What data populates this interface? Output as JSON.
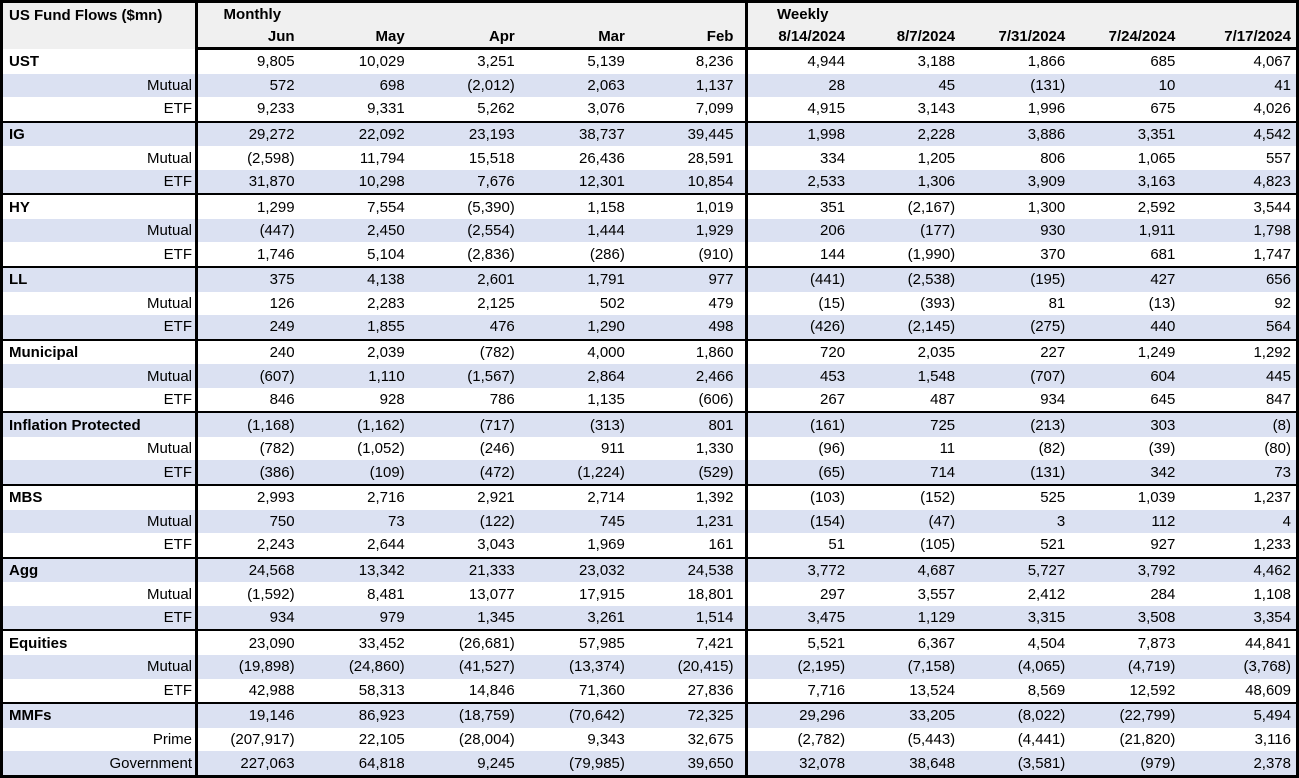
{
  "title": "US Fund Flows ($mn)",
  "groups": {
    "monthly": "Monthly",
    "weekly": "Weekly"
  },
  "columns": {
    "monthly": [
      "Jun",
      "May",
      "Apr",
      "Mar",
      "Feb"
    ],
    "weekly": [
      "8/14/2024",
      "8/7/2024",
      "7/31/2024",
      "7/24/2024",
      "7/17/2024"
    ]
  },
  "colors": {
    "stripe": "#dbe1f2",
    "header_bg": "#f0f0f0",
    "border": "#000000"
  },
  "sections": [
    {
      "name": "UST",
      "rows": [
        {
          "label": "UST",
          "values": [
            "9,805",
            "10,029",
            "3,251",
            "5,139",
            "8,236",
            "4,944",
            "3,188",
            "1,866",
            "685",
            "4,067"
          ]
        },
        {
          "label": "Mutual",
          "values": [
            "572",
            "698",
            "(2,012)",
            "2,063",
            "1,137",
            "28",
            "45",
            "(131)",
            "10",
            "41"
          ]
        },
        {
          "label": "ETF",
          "values": [
            "9,233",
            "9,331",
            "5,262",
            "3,076",
            "7,099",
            "4,915",
            "3,143",
            "1,996",
            "675",
            "4,026"
          ]
        }
      ]
    },
    {
      "name": "IG",
      "rows": [
        {
          "label": "IG",
          "values": [
            "29,272",
            "22,092",
            "23,193",
            "38,737",
            "39,445",
            "1,998",
            "2,228",
            "3,886",
            "3,351",
            "4,542"
          ]
        },
        {
          "label": "Mutual",
          "values": [
            "(2,598)",
            "11,794",
            "15,518",
            "26,436",
            "28,591",
            "334",
            "1,205",
            "806",
            "1,065",
            "557"
          ]
        },
        {
          "label": "ETF",
          "values": [
            "31,870",
            "10,298",
            "7,676",
            "12,301",
            "10,854",
            "2,533",
            "1,306",
            "3,909",
            "3,163",
            "4,823"
          ]
        }
      ]
    },
    {
      "name": "HY",
      "rows": [
        {
          "label": "HY",
          "values": [
            "1,299",
            "7,554",
            "(5,390)",
            "1,158",
            "1,019",
            "351",
            "(2,167)",
            "1,300",
            "2,592",
            "3,544"
          ]
        },
        {
          "label": "Mutual",
          "values": [
            "(447)",
            "2,450",
            "(2,554)",
            "1,444",
            "1,929",
            "206",
            "(177)",
            "930",
            "1,911",
            "1,798"
          ]
        },
        {
          "label": "ETF",
          "values": [
            "1,746",
            "5,104",
            "(2,836)",
            "(286)",
            "(910)",
            "144",
            "(1,990)",
            "370",
            "681",
            "1,747"
          ]
        }
      ]
    },
    {
      "name": "LL",
      "rows": [
        {
          "label": "LL",
          "values": [
            "375",
            "4,138",
            "2,601",
            "1,791",
            "977",
            "(441)",
            "(2,538)",
            "(195)",
            "427",
            "656"
          ]
        },
        {
          "label": "Mutual",
          "values": [
            "126",
            "2,283",
            "2,125",
            "502",
            "479",
            "(15)",
            "(393)",
            "81",
            "(13)",
            "92"
          ]
        },
        {
          "label": "ETF",
          "values": [
            "249",
            "1,855",
            "476",
            "1,290",
            "498",
            "(426)",
            "(2,145)",
            "(275)",
            "440",
            "564"
          ]
        }
      ]
    },
    {
      "name": "Municipal",
      "rows": [
        {
          "label": "Municipal",
          "values": [
            "240",
            "2,039",
            "(782)",
            "4,000",
            "1,860",
            "720",
            "2,035",
            "227",
            "1,249",
            "1,292"
          ]
        },
        {
          "label": "Mutual",
          "values": [
            "(607)",
            "1,110",
            "(1,567)",
            "2,864",
            "2,466",
            "453",
            "1,548",
            "(707)",
            "604",
            "445"
          ]
        },
        {
          "label": "ETF",
          "values": [
            "846",
            "928",
            "786",
            "1,135",
            "(606)",
            "267",
            "487",
            "934",
            "645",
            "847"
          ]
        }
      ]
    },
    {
      "name": "Inflation Protected",
      "rows": [
        {
          "label": "Inflation Protected",
          "values": [
            "(1,168)",
            "(1,162)",
            "(717)",
            "(313)",
            "801",
            "(161)",
            "725",
            "(213)",
            "303",
            "(8)"
          ]
        },
        {
          "label": "Mutual",
          "values": [
            "(782)",
            "(1,052)",
            "(246)",
            "911",
            "1,330",
            "(96)",
            "11",
            "(82)",
            "(39)",
            "(80)"
          ]
        },
        {
          "label": "ETF",
          "values": [
            "(386)",
            "(109)",
            "(472)",
            "(1,224)",
            "(529)",
            "(65)",
            "714",
            "(131)",
            "342",
            "73"
          ]
        }
      ]
    },
    {
      "name": "MBS",
      "rows": [
        {
          "label": "MBS",
          "values": [
            "2,993",
            "2,716",
            "2,921",
            "2,714",
            "1,392",
            "(103)",
            "(152)",
            "525",
            "1,039",
            "1,237"
          ]
        },
        {
          "label": "Mutual",
          "values": [
            "750",
            "73",
            "(122)",
            "745",
            "1,231",
            "(154)",
            "(47)",
            "3",
            "112",
            "4"
          ]
        },
        {
          "label": "ETF",
          "values": [
            "2,243",
            "2,644",
            "3,043",
            "1,969",
            "161",
            "51",
            "(105)",
            "521",
            "927",
            "1,233"
          ]
        }
      ]
    },
    {
      "name": "Agg",
      "rows": [
        {
          "label": "Agg",
          "values": [
            "24,568",
            "13,342",
            "21,333",
            "23,032",
            "24,538",
            "3,772",
            "4,687",
            "5,727",
            "3,792",
            "4,462"
          ]
        },
        {
          "label": "Mutual",
          "values": [
            "(1,592)",
            "8,481",
            "13,077",
            "17,915",
            "18,801",
            "297",
            "3,557",
            "2,412",
            "284",
            "1,108"
          ]
        },
        {
          "label": "ETF",
          "values": [
            "934",
            "979",
            "1,345",
            "3,261",
            "1,514",
            "3,475",
            "1,129",
            "3,315",
            "3,508",
            "3,354"
          ]
        }
      ]
    },
    {
      "name": "Equities",
      "rows": [
        {
          "label": "Equities",
          "values": [
            "23,090",
            "33,452",
            "(26,681)",
            "57,985",
            "7,421",
            "5,521",
            "6,367",
            "4,504",
            "7,873",
            "44,841"
          ]
        },
        {
          "label": "Mutual",
          "values": [
            "(19,898)",
            "(24,860)",
            "(41,527)",
            "(13,374)",
            "(20,415)",
            "(2,195)",
            "(7,158)",
            "(4,065)",
            "(4,719)",
            "(3,768)"
          ]
        },
        {
          "label": "ETF",
          "values": [
            "42,988",
            "58,313",
            "14,846",
            "71,360",
            "27,836",
            "7,716",
            "13,524",
            "8,569",
            "12,592",
            "48,609"
          ]
        }
      ]
    },
    {
      "name": "MMFs",
      "rows": [
        {
          "label": "MMFs",
          "values": [
            "19,146",
            "86,923",
            "(18,759)",
            "(70,642)",
            "72,325",
            "29,296",
            "33,205",
            "(8,022)",
            "(22,799)",
            "5,494"
          ]
        },
        {
          "label": "Prime",
          "values": [
            "(207,917)",
            "22,105",
            "(28,004)",
            "9,343",
            "32,675",
            "(2,782)",
            "(5,443)",
            "(4,441)",
            "(21,820)",
            "3,116"
          ]
        },
        {
          "label": "Government",
          "values": [
            "227,063",
            "64,818",
            "9,245",
            "(79,985)",
            "39,650",
            "32,078",
            "38,648",
            "(3,581)",
            "(979)",
            "2,378"
          ]
        }
      ]
    }
  ]
}
